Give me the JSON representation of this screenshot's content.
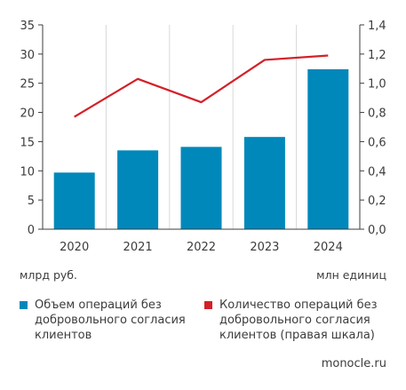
{
  "chart_data": {
    "type": "bar+line",
    "categories": [
      "2020",
      "2021",
      "2022",
      "2023",
      "2024"
    ],
    "series": [
      {
        "name": "Объем операций без добровольного согласия клиентов",
        "type": "bar",
        "axis": "left",
        "color": "#0088bb",
        "values": [
          9.7,
          13.5,
          14.1,
          15.8,
          27.4
        ]
      },
      {
        "name": "Количество операций без добровольного согласия клиентов (правая шкала)",
        "type": "line",
        "axis": "right",
        "color": "#d42028",
        "values": [
          0.77,
          1.03,
          0.87,
          1.16,
          1.19
        ]
      }
    ],
    "left_axis": {
      "label": "млрд руб.",
      "ylim": [
        0,
        35
      ],
      "ticks": [
        "0",
        "5",
        "10",
        "15",
        "20",
        "25",
        "30",
        "35"
      ]
    },
    "right_axis": {
      "label": "млн единиц",
      "ylim": [
        0,
        1.4
      ],
      "ticks": [
        "0,0",
        "0,2",
        "0,4",
        "0,6",
        "0,8",
        "1,0",
        "1,2",
        "1,4"
      ]
    },
    "grid": "vertical",
    "legend_position": "bottom"
  },
  "legend": {
    "bar_label_1": "Объем операций без",
    "bar_label_2": "добровольного согласия",
    "bar_label_3": "клиентов",
    "line_label_1": "Количество операций без",
    "line_label_2": "добровольного согласия",
    "line_label_3": "клиентов (правая шкала)"
  },
  "source": "monocle.ru"
}
